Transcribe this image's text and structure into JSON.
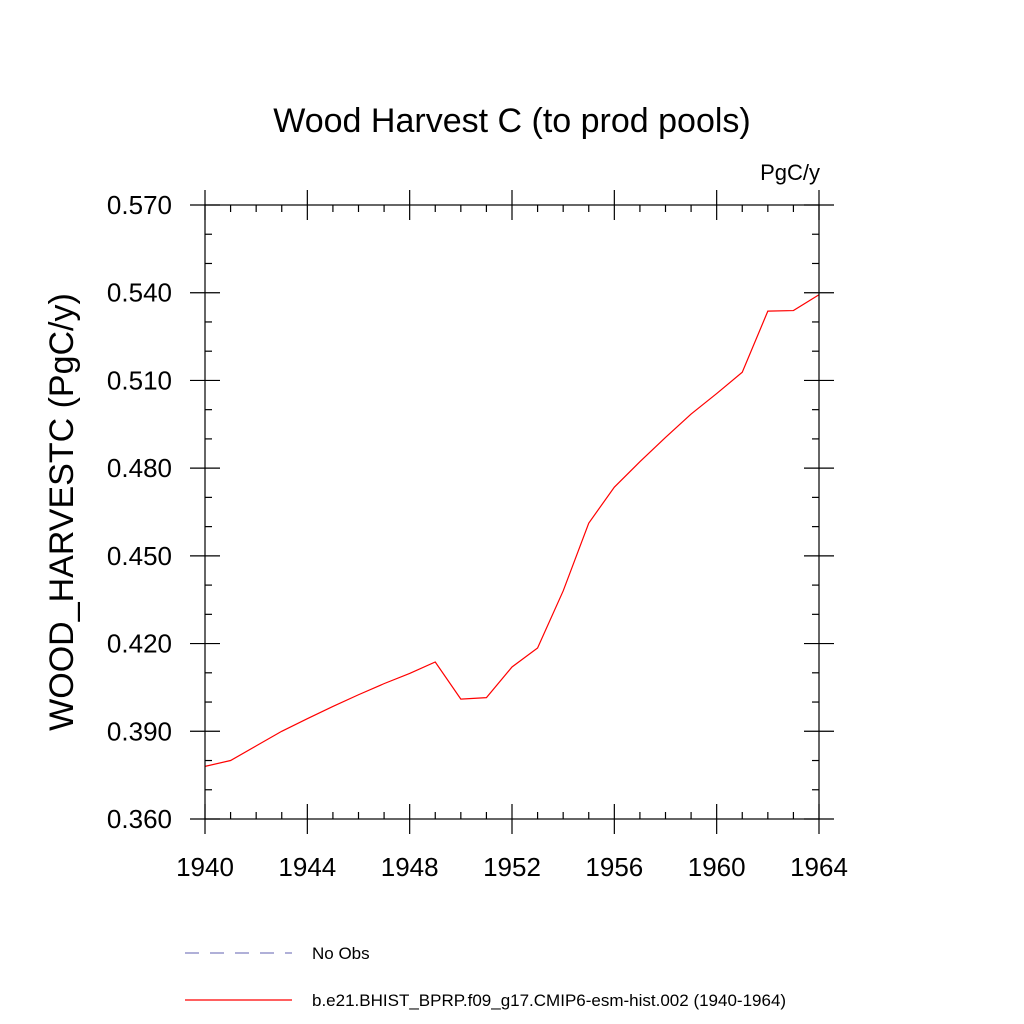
{
  "chart_data": {
    "type": "line",
    "title": "Wood Harvest C (to prod pools)",
    "units": "PgC/y",
    "ylabel": "WOOD_HARVESTC  (PgC/y)",
    "xlabel": "",
    "xlim": [
      1940,
      1964
    ],
    "ylim": [
      0.36,
      0.57
    ],
    "x_major_ticks": [
      1940,
      1944,
      1948,
      1952,
      1956,
      1960,
      1964
    ],
    "x_tick_labels": [
      "1940",
      "1944",
      "1948",
      "1952",
      "1956",
      "1960",
      "1964"
    ],
    "x_minor_ticks": [
      1941,
      1942,
      1943,
      1945,
      1946,
      1947,
      1949,
      1950,
      1951,
      1953,
      1954,
      1955,
      1957,
      1958,
      1959,
      1961,
      1962,
      1963
    ],
    "y_major_ticks": [
      0.36,
      0.39,
      0.42,
      0.45,
      0.48,
      0.51,
      0.54,
      0.57
    ],
    "y_tick_labels": [
      "0.360",
      "0.390",
      "0.420",
      "0.450",
      "0.480",
      "0.510",
      "0.540",
      "0.570"
    ],
    "y_minor_ticks": [
      0.37,
      0.38,
      0.4,
      0.41,
      0.43,
      0.44,
      0.46,
      0.47,
      0.49,
      0.5,
      0.52,
      0.53,
      0.55,
      0.56
    ],
    "series": [
      {
        "name": "b.e21.BHIST_BPRP.f09_g17.CMIP6-esm-hist.002 (1940-1964)",
        "color": "#ff0000",
        "style": "solid",
        "x": [
          1940,
          1941,
          1942,
          1943,
          1944,
          1945,
          1946,
          1947,
          1948,
          1949,
          1950,
          1951,
          1952,
          1953,
          1954,
          1955,
          1956,
          1957,
          1958,
          1959,
          1960,
          1961,
          1962,
          1963,
          1964
        ],
        "y": [
          0.378,
          0.38,
          0.385,
          0.39,
          0.3943,
          0.3985,
          0.4025,
          0.4063,
          0.4098,
          0.4137,
          0.401,
          0.4015,
          0.412,
          0.4185,
          0.438,
          0.4612,
          0.4735,
          0.4822,
          0.4905,
          0.4985,
          0.5055,
          0.5128,
          0.5337,
          0.5339,
          0.5393
        ]
      }
    ],
    "legend": {
      "placement": "bottom",
      "entries": [
        {
          "label": "No Obs",
          "color": "#8080c0",
          "style": "dashed"
        },
        {
          "label": "b.e21.BHIST_BPRP.f09_g17.CMIP6-esm-hist.002 (1940-1964)",
          "color": "#ff0000",
          "style": "solid"
        }
      ]
    }
  }
}
